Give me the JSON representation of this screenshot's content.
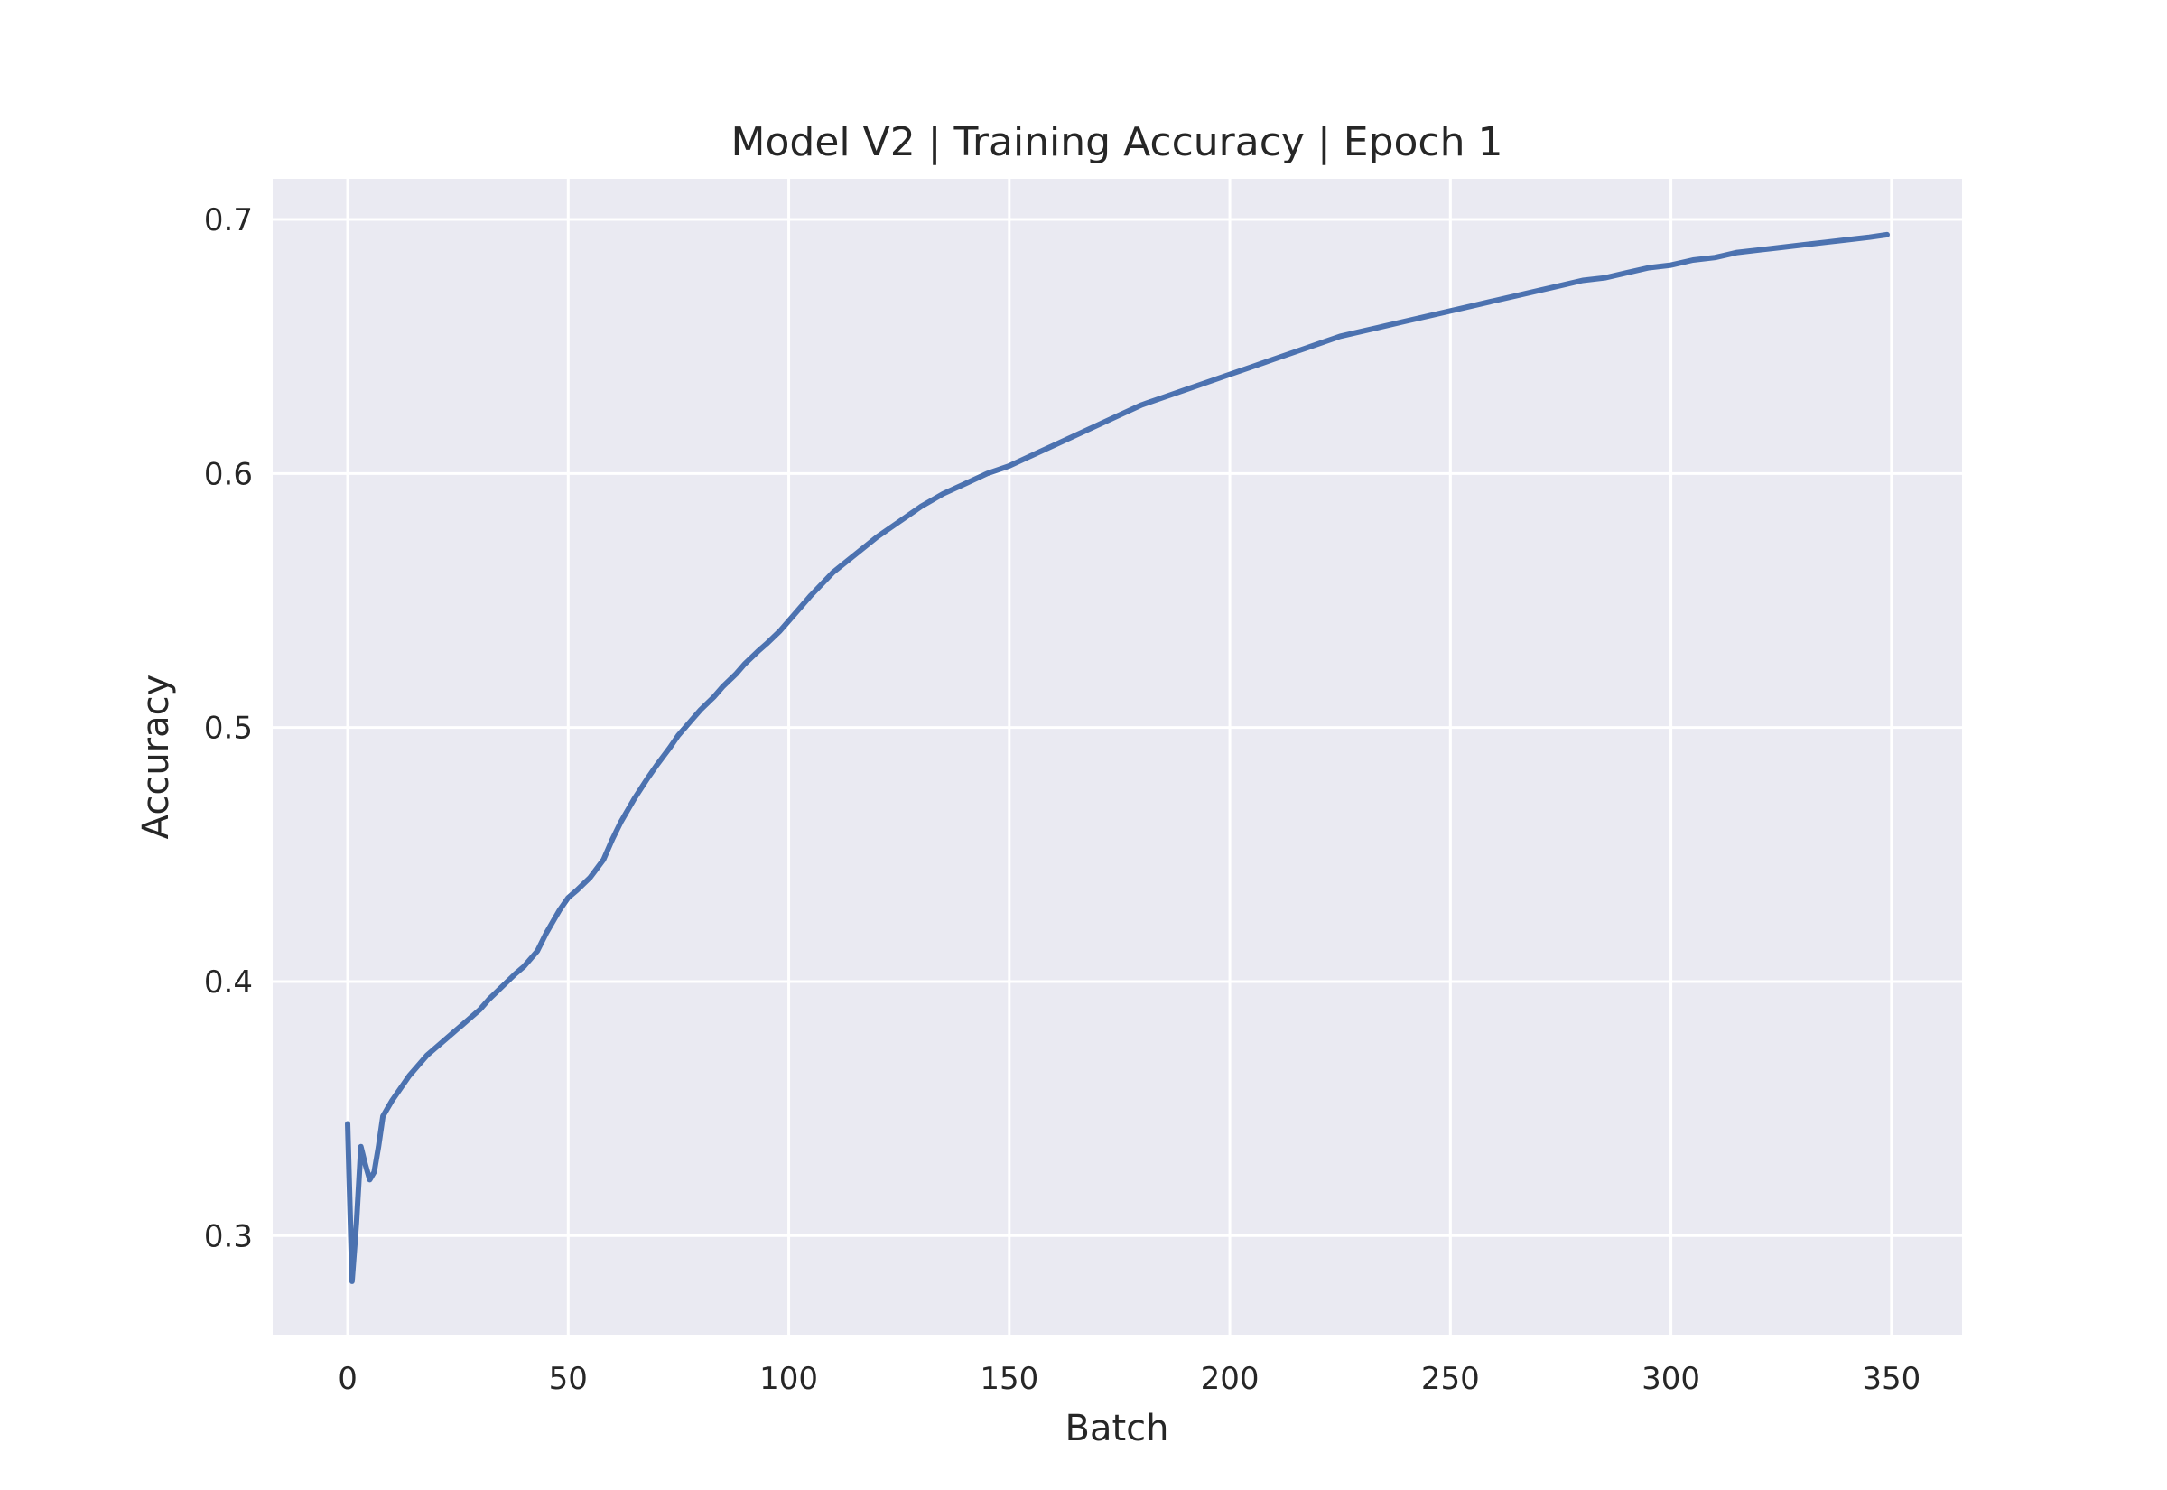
{
  "chart_data": {
    "type": "line",
    "title": "Model V2 | Training Accuracy | Epoch 1",
    "xlabel": "Batch",
    "ylabel": "Accuracy",
    "xlim": [
      -17,
      366
    ],
    "ylim": [
      0.261,
      0.716
    ],
    "xticks": [
      0,
      50,
      100,
      150,
      200,
      250,
      300,
      350
    ],
    "yticks": [
      0.3,
      0.4,
      0.5,
      0.6,
      0.7
    ],
    "grid": true,
    "series": [
      {
        "color": "#4c72b0",
        "x": [
          0,
          1,
          2,
          3,
          4,
          5,
          6,
          7,
          8,
          9,
          10,
          12,
          14,
          16,
          18,
          20,
          22,
          24,
          26,
          28,
          30,
          32,
          35,
          38,
          40,
          43,
          45,
          48,
          50,
          52,
          55,
          58,
          60,
          62,
          65,
          68,
          70,
          73,
          75,
          78,
          80,
          83,
          85,
          88,
          90,
          93,
          95,
          98,
          100,
          105,
          110,
          115,
          120,
          125,
          130,
          135,
          140,
          145,
          150,
          155,
          160,
          165,
          170,
          175,
          180,
          185,
          190,
          195,
          200,
          205,
          210,
          215,
          220,
          225,
          230,
          235,
          240,
          245,
          250,
          255,
          260,
          265,
          270,
          275,
          280,
          285,
          290,
          295,
          300,
          305,
          310,
          315,
          320,
          325,
          330,
          335,
          340,
          345,
          349
        ],
        "y": [
          0.344,
          0.282,
          0.305,
          0.335,
          0.328,
          0.322,
          0.325,
          0.335,
          0.347,
          0.35,
          0.353,
          0.358,
          0.363,
          0.367,
          0.371,
          0.374,
          0.377,
          0.38,
          0.383,
          0.386,
          0.389,
          0.393,
          0.398,
          0.403,
          0.406,
          0.412,
          0.419,
          0.428,
          0.433,
          0.436,
          0.441,
          0.448,
          0.456,
          0.463,
          0.472,
          0.48,
          0.485,
          0.492,
          0.497,
          0.503,
          0.507,
          0.512,
          0.516,
          0.521,
          0.525,
          0.53,
          0.533,
          0.538,
          0.542,
          0.552,
          0.561,
          0.568,
          0.575,
          0.581,
          0.587,
          0.592,
          0.596,
          0.6,
          0.603,
          0.607,
          0.611,
          0.615,
          0.619,
          0.623,
          0.627,
          0.63,
          0.633,
          0.636,
          0.639,
          0.642,
          0.645,
          0.648,
          0.651,
          0.654,
          0.656,
          0.658,
          0.66,
          0.662,
          0.664,
          0.666,
          0.668,
          0.67,
          0.672,
          0.674,
          0.676,
          0.677,
          0.679,
          0.681,
          0.682,
          0.684,
          0.685,
          0.687,
          0.688,
          0.689,
          0.69,
          0.691,
          0.692,
          0.693,
          0.694
        ]
      }
    ]
  }
}
